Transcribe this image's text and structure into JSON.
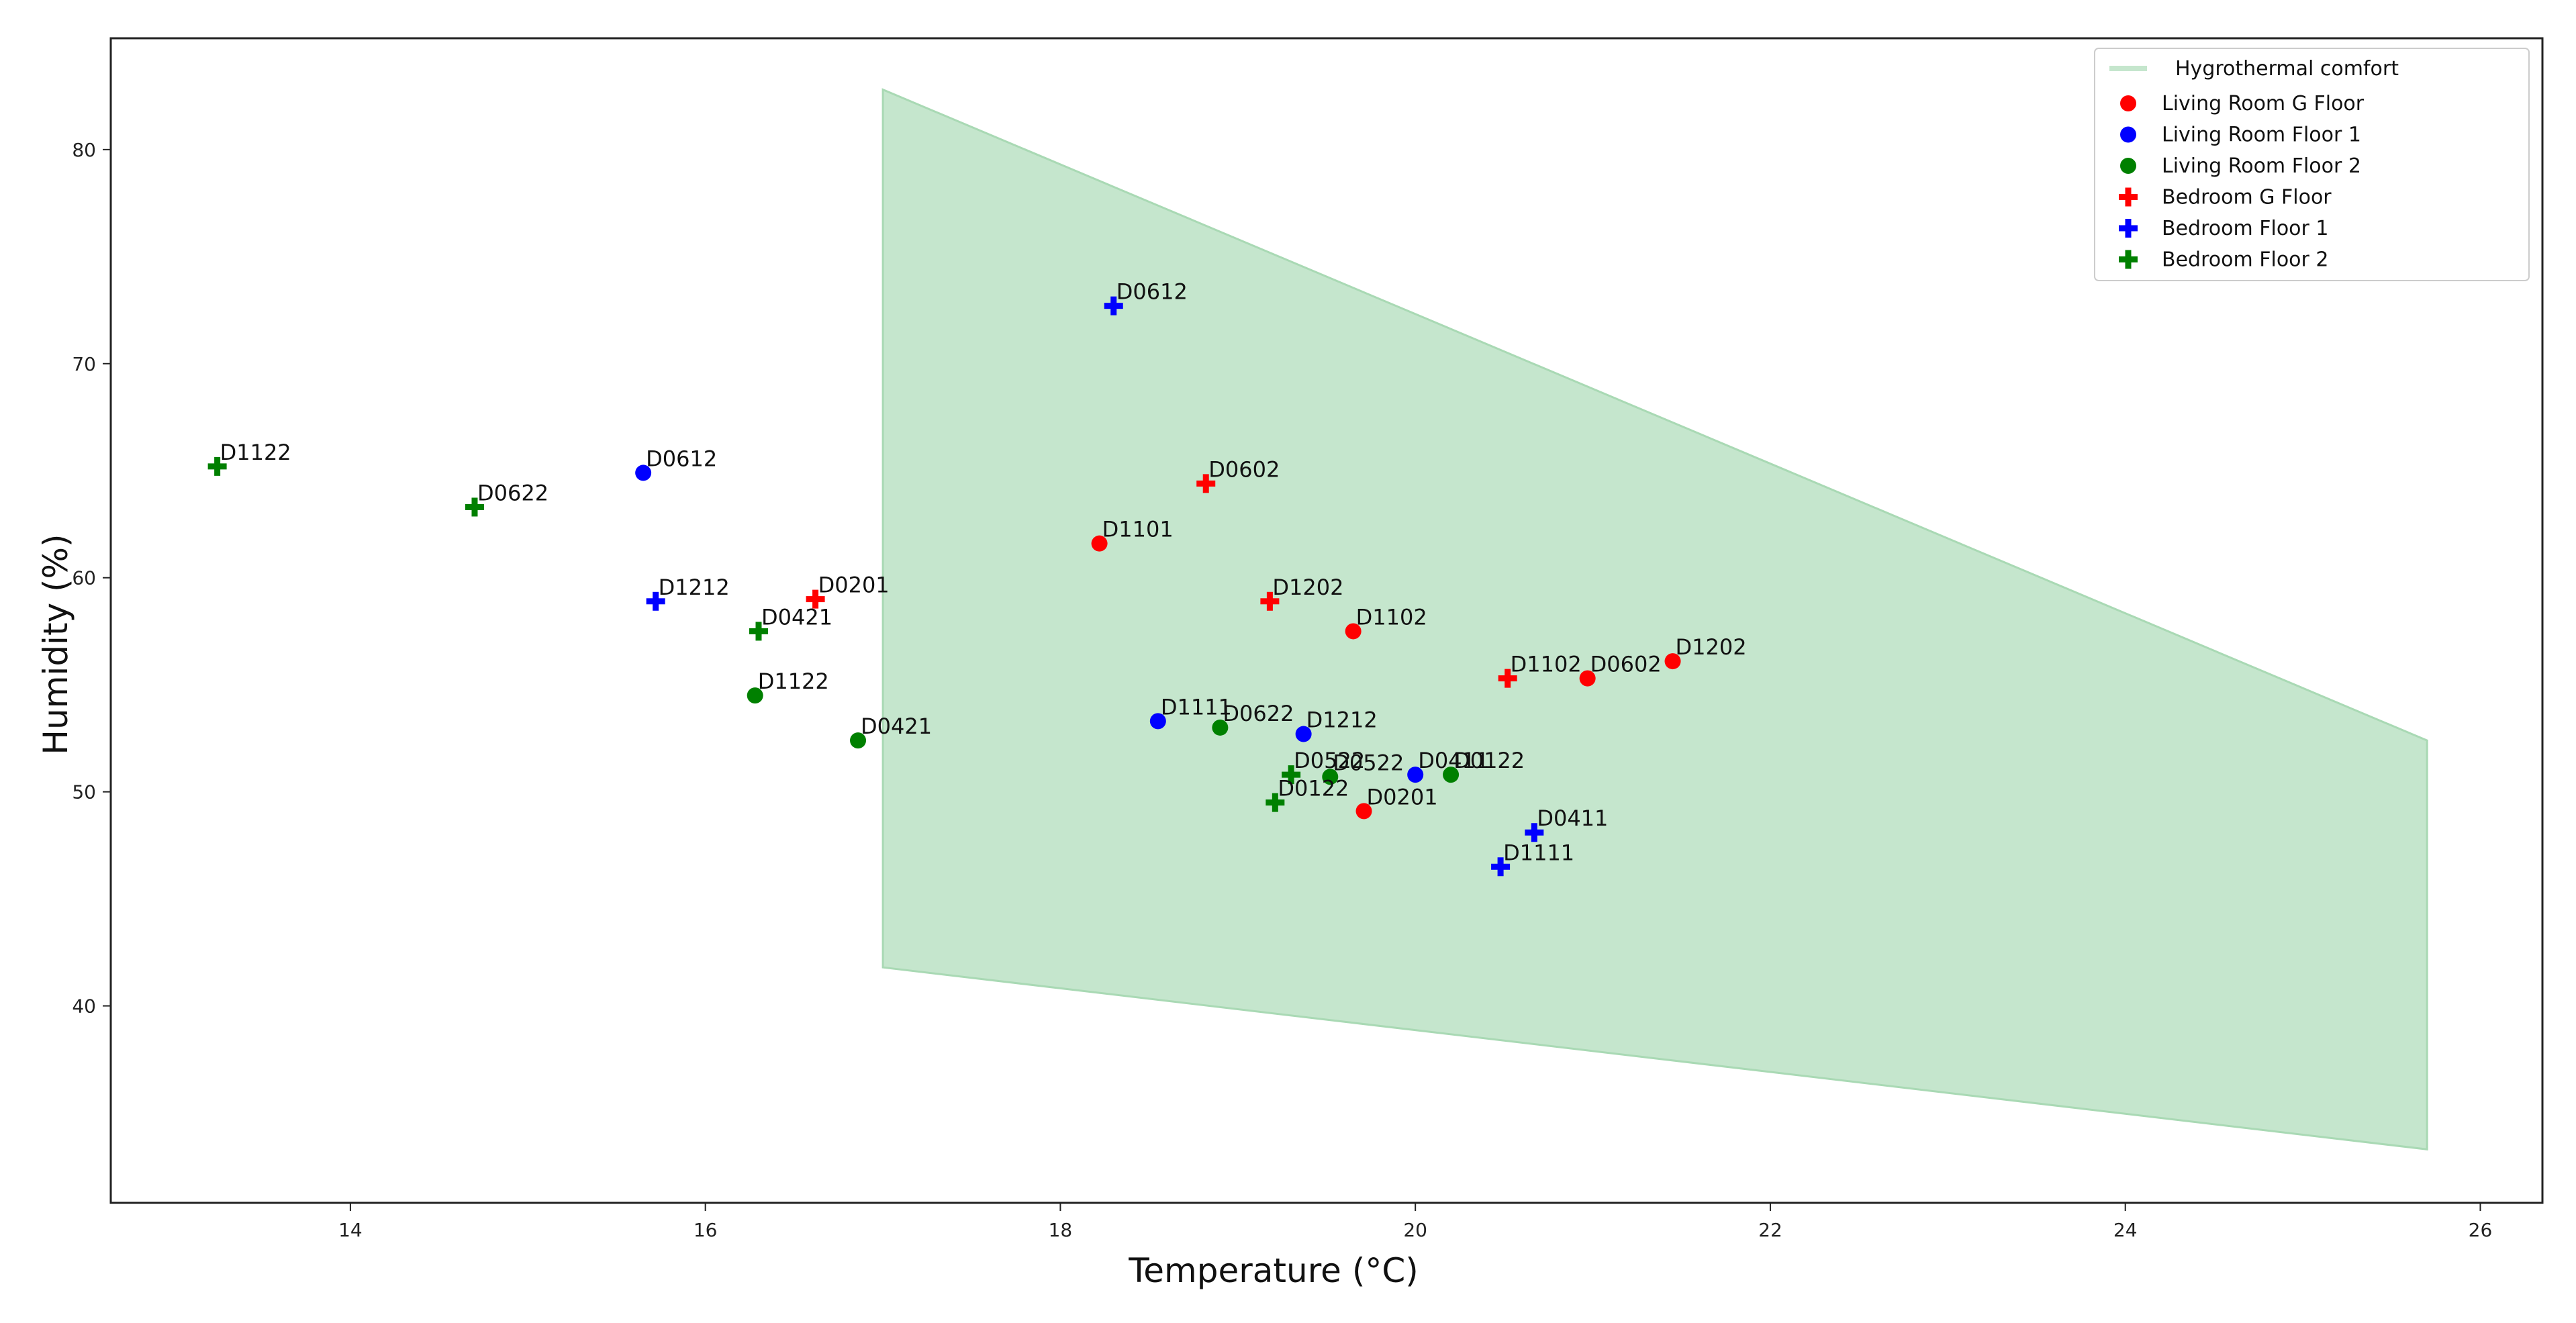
{
  "colors": {
    "comfort_fill": "#c5e6cd",
    "comfort_edge": "#a9d9b4",
    "red": "#ff0000",
    "blue": "#0000ff",
    "green": "#008000"
  },
  "chart_data": {
    "type": "scatter",
    "title": "",
    "xlabel": "Temperature (°C)",
    "ylabel": "Humidity (%)",
    "xlim": [
      12.65,
      26.35
    ],
    "ylim": [
      30.8,
      85.2
    ],
    "xticks": [
      14,
      16,
      18,
      20,
      22,
      24,
      26
    ],
    "yticks": [
      40,
      50,
      60,
      70,
      80
    ],
    "grid": false,
    "legend_position": "top-right",
    "comfort_zone": {
      "name": "Hygrothermal comfort",
      "polygon": [
        [
          17.0,
          82.8
        ],
        [
          25.7,
          52.4
        ],
        [
          25.7,
          33.3
        ],
        [
          17.0,
          41.8
        ]
      ]
    },
    "series": [
      {
        "name": "Living Room G Floor",
        "color": "red",
        "marker": "circle",
        "points": [
          {
            "label": "D1101",
            "x": 18.22,
            "y": 61.6
          },
          {
            "label": "D1102",
            "x": 19.65,
            "y": 57.5
          },
          {
            "label": "D0602",
            "x": 20.97,
            "y": 55.3
          },
          {
            "label": "D1202",
            "x": 21.45,
            "y": 56.1
          },
          {
            "label": "D0201",
            "x": 19.71,
            "y": 49.1
          }
        ]
      },
      {
        "name": "Living Room Floor 1",
        "color": "blue",
        "marker": "circle",
        "points": [
          {
            "label": "D0612",
            "x": 15.65,
            "y": 64.9
          },
          {
            "label": "D1111",
            "x": 18.55,
            "y": 53.3
          },
          {
            "label": "D1212",
            "x": 19.37,
            "y": 52.7
          },
          {
            "label": "D0411",
            "x": 20.0,
            "y": 50.8
          }
        ]
      },
      {
        "name": "Living Room Floor 2",
        "color": "green",
        "marker": "circle",
        "points": [
          {
            "label": "D1122",
            "x": 16.28,
            "y": 54.5
          },
          {
            "label": "D0421",
            "x": 16.86,
            "y": 52.4
          },
          {
            "label": "D0622",
            "x": 18.9,
            "y": 53.0
          },
          {
            "label": "D0522",
            "x": 19.52,
            "y": 50.7
          },
          {
            "label": "D0122",
            "x": 20.2,
            "y": 50.8
          }
        ]
      },
      {
        "name": "Bedroom G Floor",
        "color": "red",
        "marker": "plus",
        "points": [
          {
            "label": "D0201",
            "x": 16.62,
            "y": 59.0
          },
          {
            "label": "D0602",
            "x": 18.82,
            "y": 64.4
          },
          {
            "label": "D1202",
            "x": 19.18,
            "y": 58.9
          },
          {
            "label": "D1102",
            "x": 20.52,
            "y": 55.3
          }
        ]
      },
      {
        "name": "Bedroom Floor 1",
        "color": "blue",
        "marker": "plus",
        "points": [
          {
            "label": "D0612",
            "x": 18.3,
            "y": 72.7
          },
          {
            "label": "D1212",
            "x": 15.72,
            "y": 58.9
          },
          {
            "label": "D0411",
            "x": 20.67,
            "y": 48.1
          },
          {
            "label": "D1111",
            "x": 20.48,
            "y": 46.5
          }
        ]
      },
      {
        "name": "Bedroom Floor 2",
        "color": "green",
        "marker": "plus",
        "points": [
          {
            "label": "D1122",
            "x": 13.25,
            "y": 65.2
          },
          {
            "label": "D0622",
            "x": 14.7,
            "y": 63.3
          },
          {
            "label": "D0421",
            "x": 16.3,
            "y": 57.5
          },
          {
            "label": "D0522",
            "x": 19.3,
            "y": 50.8
          },
          {
            "label": "D0122",
            "x": 19.21,
            "y": 49.5
          }
        ]
      }
    ]
  }
}
